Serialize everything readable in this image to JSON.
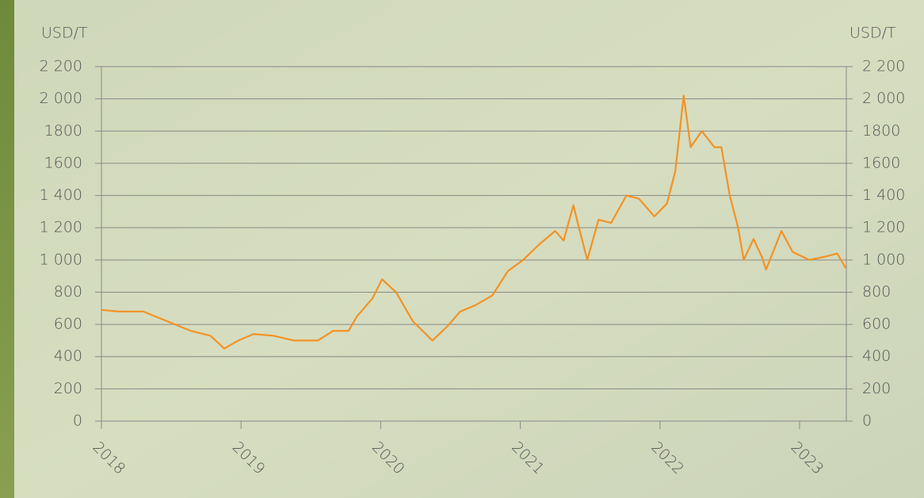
{
  "chart_data": {
    "type": "line",
    "y_label": "USD/T",
    "y2_label": "USD/T",
    "x": [
      2018.0,
      2018.12,
      2018.3,
      2018.47,
      2018.64,
      2018.78,
      2018.88,
      2018.98,
      2019.09,
      2019.23,
      2019.38,
      2019.55,
      2019.66,
      2019.77,
      2019.83,
      2019.94,
      2020.01,
      2020.11,
      2020.23,
      2020.37,
      2020.48,
      2020.57,
      2020.68,
      2020.8,
      2020.91,
      2021.02,
      2021.14,
      2021.25,
      2021.31,
      2021.38,
      2021.42,
      2021.48,
      2021.56,
      2021.65,
      2021.76,
      2021.85,
      2021.96,
      2022.05,
      2022.11,
      2022.17,
      2022.22,
      2022.3,
      2022.39,
      2022.44,
      2022.5,
      2022.56,
      2022.6,
      2022.67,
      2022.73,
      2022.76,
      2022.87,
      2022.95,
      2023.07,
      2023.18,
      2023.27,
      2023.33
    ],
    "series": [
      {
        "color": "#f39224",
        "values": [
          690,
          680,
          680,
          620,
          560,
          530,
          450,
          500,
          540,
          530,
          500,
          500,
          560,
          560,
          650,
          760,
          880,
          800,
          620,
          500,
          590,
          680,
          720,
          780,
          930,
          1000,
          1100,
          1180,
          1120,
          1340,
          1200,
          1000,
          1250,
          1230,
          1400,
          1380,
          1270,
          1350,
          1550,
          2020,
          1700,
          1800,
          1700,
          1700,
          1400,
          1200,
          1000,
          1130,
          1020,
          940,
          1180,
          1050,
          1000,
          1020,
          1040,
          950
        ]
      }
    ],
    "xlim": [
      2018,
      2023.335
    ],
    "xticks": [
      2018,
      2019,
      2020,
      2021,
      2022,
      2023
    ],
    "ylim": [
      0,
      2200
    ],
    "yticks": [
      0,
      200,
      400,
      600,
      800,
      {
        "value": 1000,
        "label": "1 000"
      },
      {
        "value": 1200,
        "label": "1 200"
      },
      {
        "value": 1400,
        "label": "1 400"
      },
      1600,
      1800,
      {
        "value": 2000,
        "label": "2 000"
      },
      {
        "value": 2200,
        "label": "2 200"
      }
    ],
    "y2lim": [
      0,
      2200
    ],
    "y2ticks": [
      0,
      200,
      400,
      600,
      800,
      {
        "value": 1000,
        "label": "1 000"
      },
      {
        "value": 1200,
        "label": "1 200"
      },
      {
        "value": 1400,
        "label": "1 400"
      },
      1600,
      1800,
      {
        "value": 2000,
        "label": "2 000"
      },
      {
        "value": 2200,
        "label": "2 200"
      }
    ],
    "grid": true
  }
}
